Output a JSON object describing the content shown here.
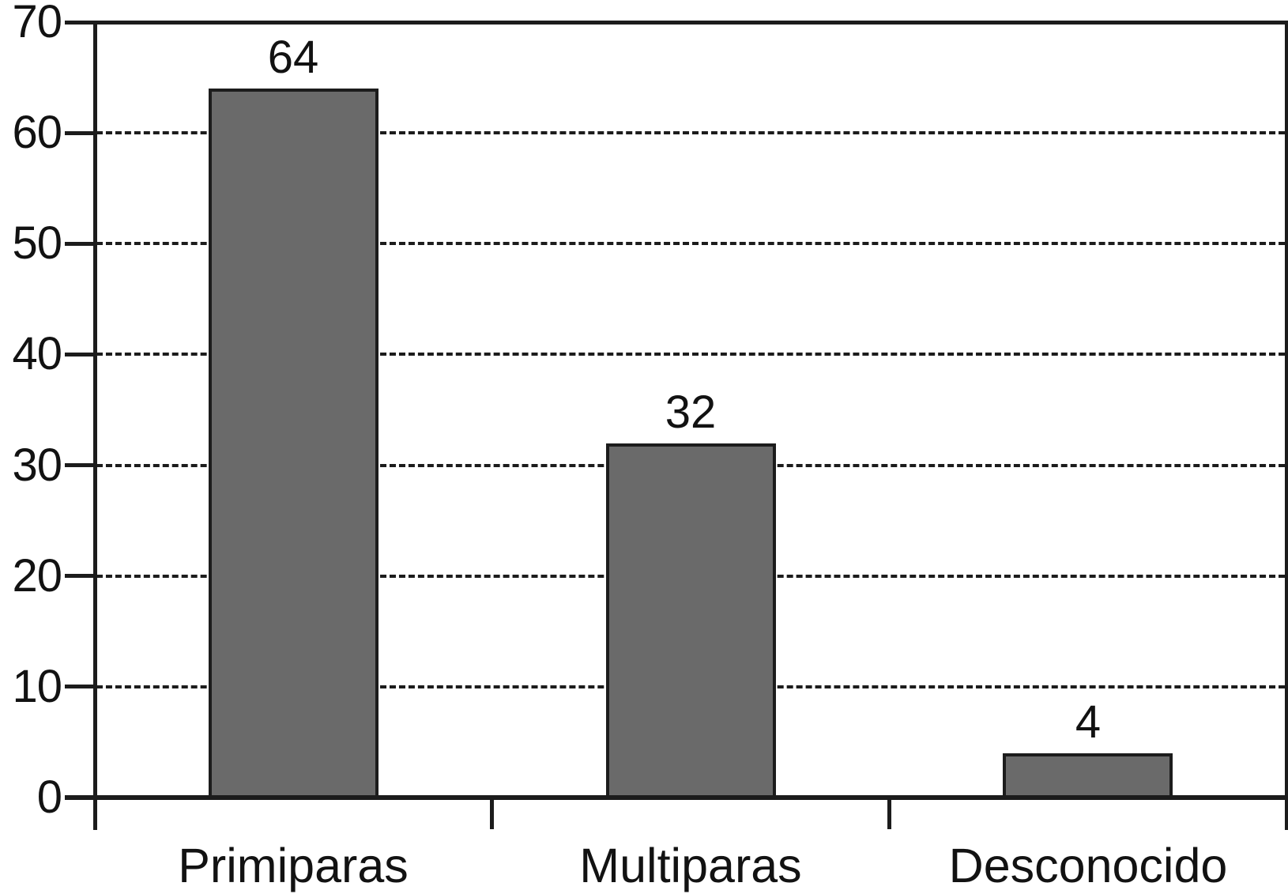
{
  "chart_data": {
    "type": "bar",
    "categories": [
      "Primiparas",
      "Multiparas",
      "Desconocido"
    ],
    "values": [
      64,
      32,
      4
    ],
    "value_labels": [
      "64",
      "32",
      "4"
    ],
    "title": "",
    "xlabel": "",
    "ylabel": "",
    "ylim": [
      0,
      70
    ],
    "yticks": [
      0,
      10,
      20,
      30,
      40,
      50,
      60,
      70
    ],
    "grid": "horizontal-dashed",
    "legend": "none",
    "colors": {
      "bar_fill": "#6a6a6a",
      "bar_border": "#1c1c1c",
      "axis": "#1c1c1c",
      "text": "#121212",
      "background": "#ffffff"
    }
  }
}
